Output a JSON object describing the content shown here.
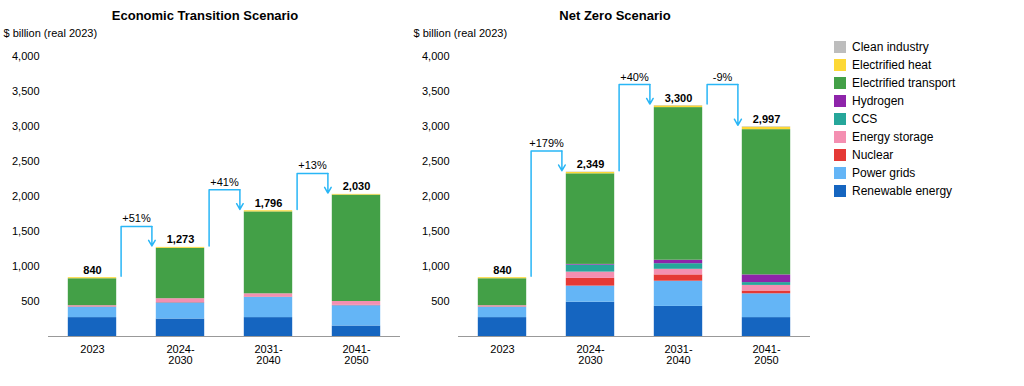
{
  "chart_data": [
    {
      "type": "bar",
      "stacked": true,
      "title": "Economic Transition Scenario",
      "ylabel": "$ billion (real 2023)",
      "categories": [
        "2023",
        "2024-\n2030",
        "2031-\n2040",
        "2041-\n2050"
      ],
      "series": [
        {
          "name": "Renewable energy",
          "color": "#1565c0",
          "values": [
            270,
            250,
            270,
            150
          ]
        },
        {
          "name": "Power grids",
          "color": "#64b5f6",
          "values": [
            150,
            230,
            290,
            290
          ]
        },
        {
          "name": "Nuclear",
          "color": "#e53935",
          "values": [
            5,
            5,
            5,
            5
          ]
        },
        {
          "name": "Energy storage",
          "color": "#f48fb1",
          "values": [
            15,
            55,
            45,
            55
          ]
        },
        {
          "name": "CCS",
          "color": "#26a69a",
          "values": [
            0,
            0,
            0,
            0
          ]
        },
        {
          "name": "Hydrogen",
          "color": "#8e24aa",
          "values": [
            0,
            0,
            0,
            0
          ]
        },
        {
          "name": "Electrified transport",
          "color": "#43a047",
          "values": [
            385,
            720,
            1170,
            1520
          ]
        },
        {
          "name": "Electrified heat",
          "color": "#fdd835",
          "values": [
            15,
            13,
            16,
            10
          ]
        },
        {
          "name": "Clean industry",
          "color": "#bdbdbd",
          "values": [
            0,
            0,
            0,
            0
          ]
        }
      ],
      "totals": [
        840,
        1273,
        1796,
        2030
      ],
      "total_labels": [
        "840",
        "1,273",
        "1,796",
        "2,030"
      ],
      "annotations": [
        {
          "text": "+51%",
          "from": "2023",
          "to": "2024-\n2030",
          "color": "#29b6f6"
        },
        {
          "text": "+41%",
          "from": "2024-\n2030",
          "to": "2031-\n2040",
          "color": "#29b6f6"
        },
        {
          "text": "+13%",
          "from": "2031-\n2040",
          "to": "2041-\n2050",
          "color": "#29b6f6"
        }
      ],
      "ylim": [
        0,
        4000
      ],
      "yticks": [
        500,
        {
          "value": 1000,
          "label": "1,000"
        },
        {
          "value": 1500,
          "label": "1,500"
        },
        {
          "value": 2000,
          "label": "2,000"
        },
        {
          "value": 2500,
          "label": "2,500"
        },
        {
          "value": 3000,
          "label": "3,000"
        },
        {
          "value": 3500,
          "label": "3,500"
        },
        {
          "value": 4000,
          "label": "4,000"
        }
      ],
      "grid": false
    },
    {
      "type": "bar",
      "stacked": true,
      "title": "Net Zero Scenario",
      "ylabel": "$ billion (real 2023)",
      "categories": [
        "2023",
        "2024-\n2030",
        "2031-\n2040",
        "2041-\n2050"
      ],
      "series": [
        {
          "name": "Renewable energy",
          "color": "#1565c0",
          "values": [
            270,
            490,
            430,
            270
          ]
        },
        {
          "name": "Power grids",
          "color": "#64b5f6",
          "values": [
            150,
            230,
            360,
            340
          ]
        },
        {
          "name": "Nuclear",
          "color": "#e53935",
          "values": [
            5,
            110,
            90,
            40
          ]
        },
        {
          "name": "Energy storage",
          "color": "#f48fb1",
          "values": [
            15,
            90,
            80,
            80
          ]
        },
        {
          "name": "CCS",
          "color": "#26a69a",
          "values": [
            0,
            100,
            80,
            40
          ]
        },
        {
          "name": "Hydrogen",
          "color": "#8e24aa",
          "values": [
            0,
            10,
            50,
            110
          ]
        },
        {
          "name": "Electrified transport",
          "color": "#43a047",
          "values": [
            385,
            1294,
            2180,
            2075
          ]
        },
        {
          "name": "Electrified heat",
          "color": "#fdd835",
          "values": [
            15,
            20,
            25,
            35
          ]
        },
        {
          "name": "Clean industry",
          "color": "#bdbdbd",
          "values": [
            0,
            5,
            5,
            7
          ]
        }
      ],
      "totals": [
        840,
        2349,
        3300,
        2997
      ],
      "total_labels": [
        "840",
        "2,349",
        "3,300",
        "2,997"
      ],
      "annotations": [
        {
          "text": "+179%",
          "from": "2023",
          "to": "2024-\n2030",
          "color": "#29b6f6"
        },
        {
          "text": "+40%",
          "from": "2024-\n2030",
          "to": "2031-\n2040",
          "color": "#29b6f6"
        },
        {
          "text": "-9%",
          "from": "2031-\n2040",
          "to": "2041-\n2050",
          "color": "#29b6f6"
        }
      ],
      "ylim": [
        0,
        4000
      ],
      "yticks": [
        500,
        {
          "value": 1000,
          "label": "1,000"
        },
        {
          "value": 1500,
          "label": "1,500"
        },
        {
          "value": 2000,
          "label": "2,000"
        },
        {
          "value": 2500,
          "label": "2,500"
        },
        {
          "value": 3000,
          "label": "3,000"
        },
        {
          "value": 3500,
          "label": "3,500"
        },
        {
          "value": 4000,
          "label": "4,000"
        }
      ],
      "grid": false,
      "legend": "right"
    }
  ]
}
